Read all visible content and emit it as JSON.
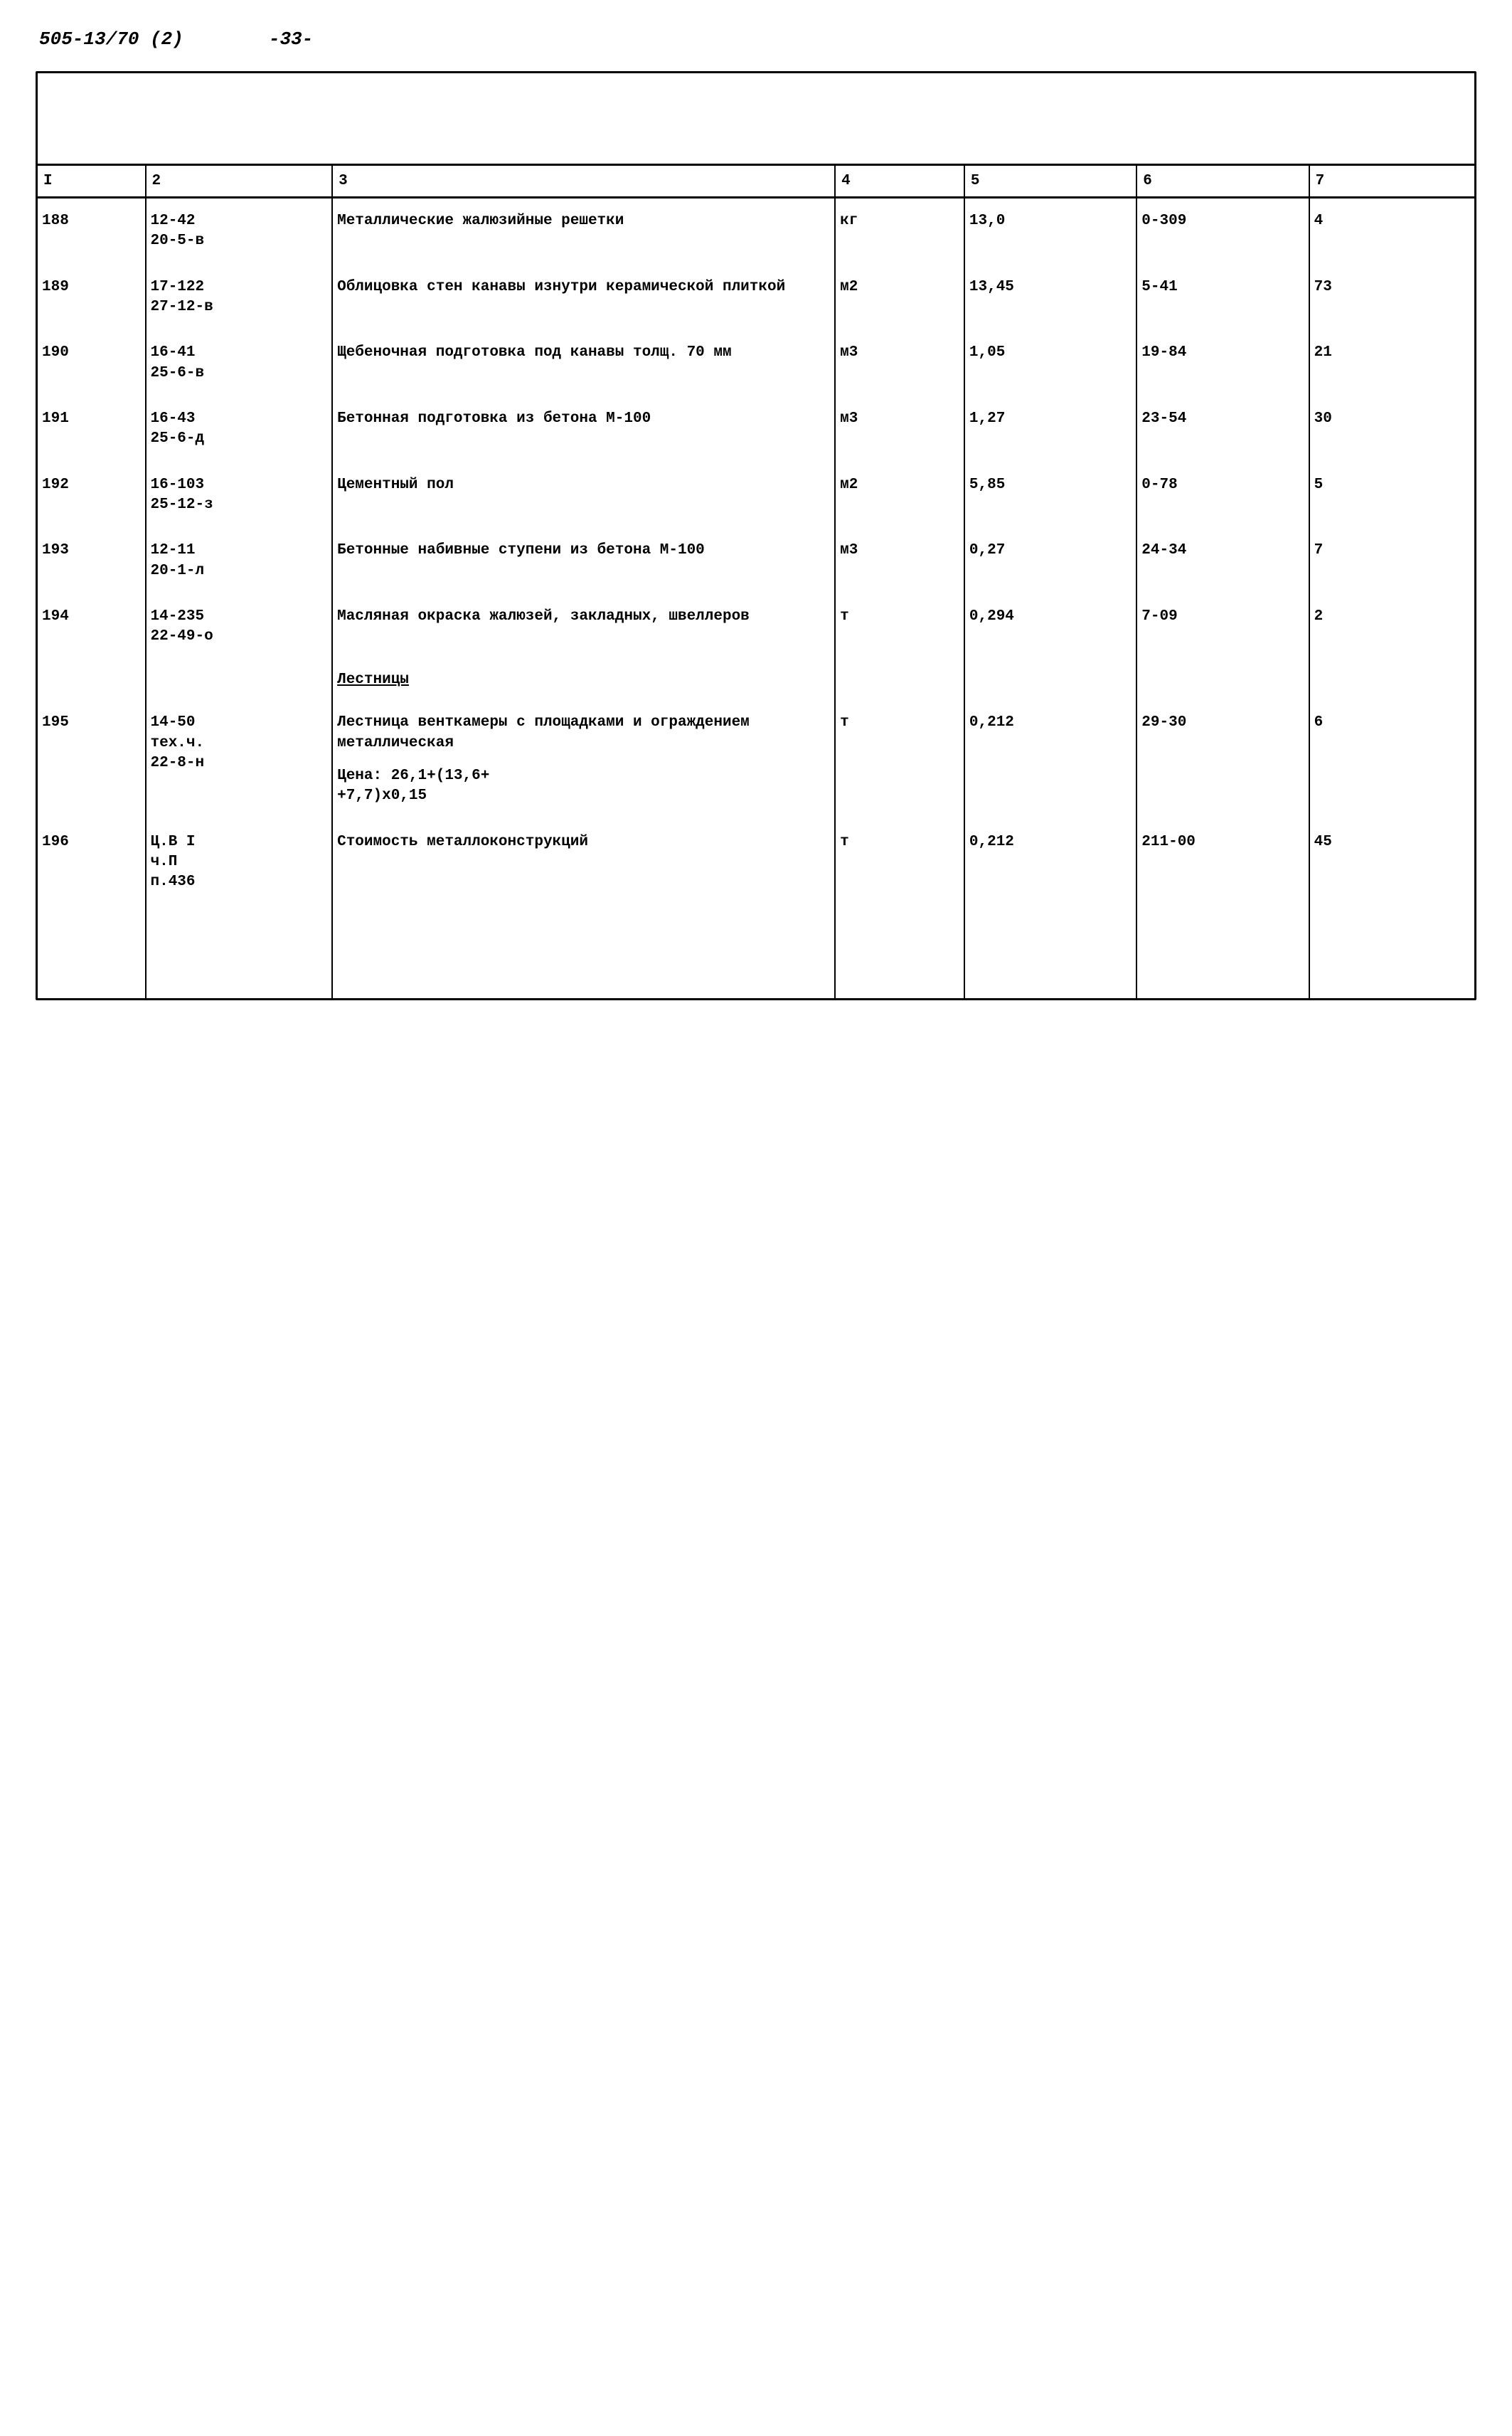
{
  "header": {
    "doc_number": "505-13/70 (2)",
    "page_number": "-33-"
  },
  "columns": [
    "I",
    "2",
    "3",
    "4",
    "5",
    "6",
    "7"
  ],
  "rows": [
    {
      "c1": "188",
      "c2": "12-42\n20-5-в",
      "c3": "Металлические жалюзийные решетки",
      "c4": "кг",
      "c5": "13,0",
      "c6": "0-309",
      "c7": "4"
    },
    {
      "c1": "189",
      "c2": "17-122\n27-12-в",
      "c3": "Облицовка стен канавы изнутри керамической плиткой",
      "c4": "м2",
      "c5": "13,45",
      "c6": "5-41",
      "c7": "73"
    },
    {
      "c1": "190",
      "c2": "16-41\n25-6-в",
      "c3": "Щебеночная подготовка под канавы толщ. 70 мм",
      "c4": "м3",
      "c5": "1,05",
      "c6": "19-84",
      "c7": "21"
    },
    {
      "c1": "191",
      "c2": "16-43\n25-6-д",
      "c3": "Бетонная подготовка из бетона М-100",
      "c4": "м3",
      "c5": "1,27",
      "c6": "23-54",
      "c7": "30"
    },
    {
      "c1": "192",
      "c2": "16-103\n25-12-з",
      "c3": "Цементный пол",
      "c4": "м2",
      "c5": "5,85",
      "c6": "0-78",
      "c7": "5"
    },
    {
      "c1": "193",
      "c2": "12-11\n20-1-л",
      "c3": "Бетонные набивные ступени из бетона М-100",
      "c4": "м3",
      "c5": "0,27",
      "c6": "24-34",
      "c7": "7"
    },
    {
      "c1": "194",
      "c2": "14-235\n22-49-о",
      "c3": "Масляная окраска жалюзей, закладных, швеллеров",
      "c4": "т",
      "c5": "0,294",
      "c6": "7-09",
      "c7": "2"
    },
    {
      "section": true,
      "c3": "Лестницы"
    },
    {
      "c1": "195",
      "c2": "14-50\nтех.ч.\n22-8-н",
      "c3": "Лестница венткамеры с площадками и ограждением металлическая",
      "c3_extra": "Цена: 26,1+(13,6+\n+7,7)x0,15",
      "c4": "т",
      "c5": "0,212",
      "c6": "29-30",
      "c7": "6"
    },
    {
      "c1": "196",
      "c2": "Ц.В I\nч.П\nп.436",
      "c3": "Стоимость металлоконструкций",
      "c4": "т",
      "c5": "0,212",
      "c6": "211-00",
      "c7": "45"
    }
  ]
}
